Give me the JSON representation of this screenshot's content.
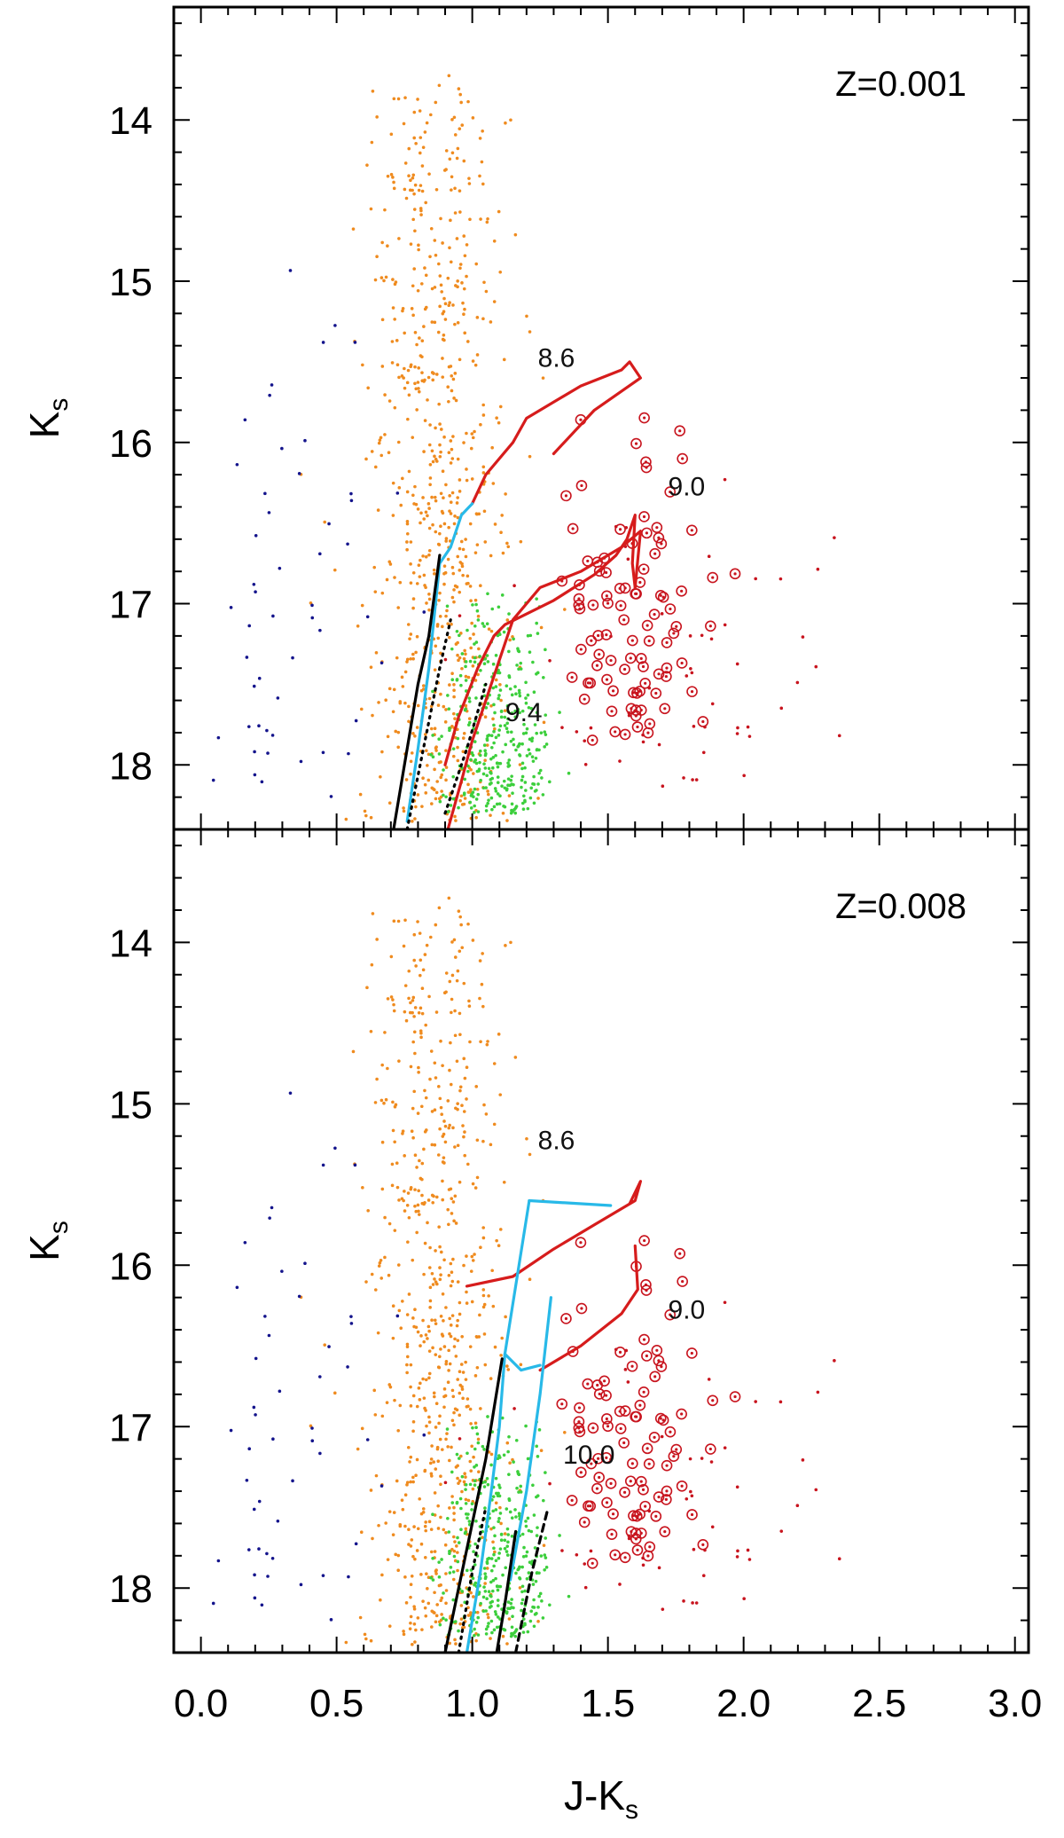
{
  "chart_data": [
    {
      "type": "scatter",
      "panel": "top",
      "annotation": "Z=0.001",
      "ylabel": "K",
      "ylabel_sub": "s",
      "xlim": [
        -0.1,
        3.05
      ],
      "ylim": [
        18.4,
        13.3
      ],
      "y_inverted": true,
      "yticks": [
        14,
        15,
        16,
        17,
        18
      ],
      "xticks": [
        0.0,
        0.5,
        1.0,
        1.5,
        2.0,
        2.5,
        3.0
      ],
      "show_xtick_labels": false,
      "age_labels": [
        {
          "text": "8.6",
          "x": 1.31,
          "y": 15.53
        },
        {
          "text": "9.0",
          "x": 1.79,
          "y": 16.33
        },
        {
          "text": "9.4",
          "x": 1.19,
          "y": 17.73
        }
      ],
      "lines": [
        {
          "color": "#d61c1c",
          "dash": "solid",
          "points": [
            [
              0.9,
              18.0
            ],
            [
              0.95,
              17.7
            ],
            [
              1.02,
              17.4
            ],
            [
              1.08,
              17.2
            ],
            [
              1.12,
              17.13
            ],
            [
              1.3,
              16.98
            ],
            [
              1.45,
              16.82
            ],
            [
              1.53,
              16.7
            ],
            [
              1.57,
              16.6
            ],
            [
              1.58,
              16.55
            ],
            [
              1.6,
              16.45
            ],
            [
              1.59,
              16.75
            ],
            [
              1.6,
              16.9
            ]
          ]
        },
        {
          "color": "#d61c1c",
          "dash": "solid",
          "points": [
            [
              0.91,
              18.4
            ],
            [
              0.96,
              18.1
            ],
            [
              1.0,
              17.85
            ],
            [
              1.05,
              17.6
            ],
            [
              1.1,
              17.35
            ],
            [
              1.15,
              17.1
            ],
            [
              1.25,
              16.9
            ],
            [
              1.4,
              16.8
            ],
            [
              1.55,
              16.65
            ],
            [
              1.62,
              16.55
            ],
            [
              1.6,
              16.9
            ]
          ]
        },
        {
          "color": "#d61c1c",
          "dash": "solid",
          "points": [
            [
              1.0,
              16.38
            ],
            [
              1.05,
              16.2
            ],
            [
              1.15,
              16.0
            ],
            [
              1.2,
              15.85
            ],
            [
              1.3,
              15.75
            ],
            [
              1.4,
              15.65
            ],
            [
              1.55,
              15.55
            ],
            [
              1.58,
              15.5
            ],
            [
              1.62,
              15.6
            ],
            [
              1.45,
              15.8
            ],
            [
              1.3,
              16.07
            ]
          ]
        },
        {
          "color": "#28b9e8",
          "dash": "solid",
          "points": [
            [
              0.76,
              18.35
            ],
            [
              0.8,
              17.9
            ],
            [
              0.84,
              17.4
            ],
            [
              0.88,
              16.75
            ],
            [
              0.92,
              16.65
            ],
            [
              0.96,
              16.45
            ],
            [
              1.0,
              16.38
            ]
          ]
        },
        {
          "color": "#000000",
          "dash": "solid",
          "points": [
            [
              0.71,
              18.4
            ],
            [
              0.76,
              17.9
            ],
            [
              0.8,
              17.5
            ],
            [
              0.84,
              17.2
            ],
            [
              0.88,
              16.7
            ]
          ]
        },
        {
          "color": "#000000",
          "dash": "dotted",
          "points": [
            [
              0.76,
              18.4
            ],
            [
              0.82,
              17.9
            ],
            [
              0.88,
              17.4
            ],
            [
              0.92,
              17.1
            ]
          ]
        },
        {
          "color": "#000000",
          "dash": "dotted",
          "points": [
            [
              0.9,
              18.3
            ],
            [
              0.98,
              17.9
            ],
            [
              1.05,
              17.5
            ]
          ]
        }
      ],
      "scatter_groups": [
        {
          "color": "#ef8b1f",
          "count": 720,
          "x_center": 0.88,
          "x_spread": 0.13,
          "y_range": [
            13.7,
            18.35
          ],
          "y_skew": 0.75
        },
        {
          "color": "#3ccf3c",
          "count": 360,
          "x_center": 1.09,
          "x_spread": 0.1,
          "y_range": [
            16.9,
            18.3
          ],
          "y_skew": 0.6
        },
        {
          "color": "#14148c",
          "count": 52,
          "x_center": 0.35,
          "x_spread": 0.18,
          "y_range": [
            14.2,
            18.2
          ],
          "y_skew": 0.5
        },
        {
          "color": "#c8141e",
          "count": 55,
          "x_center": 1.7,
          "x_spread": 0.3,
          "y_range": [
            16.2,
            18.2
          ],
          "y_skew": 0.5
        },
        {
          "color": "#c8141e",
          "count": 95,
          "x_center": 1.57,
          "x_spread": 0.15,
          "y_range": [
            15.5,
            17.85
          ],
          "y_skew": 0.5,
          "ring": true
        }
      ]
    },
    {
      "type": "scatter",
      "panel": "bottom",
      "annotation": "Z=0.008",
      "ylabel": "K",
      "ylabel_sub": "s",
      "xlabel": "J-K",
      "xlabel_sub": "s",
      "xlim": [
        -0.1,
        3.05
      ],
      "ylim": [
        18.4,
        13.3
      ],
      "y_inverted": true,
      "yticks": [
        14,
        15,
        16,
        17,
        18
      ],
      "xticks": [
        0.0,
        0.5,
        1.0,
        1.5,
        2.0,
        2.5,
        3.0
      ],
      "show_xtick_labels": true,
      "age_labels": [
        {
          "text": "8.6",
          "x": 1.31,
          "y": 15.28
        },
        {
          "text": "9.0",
          "x": 1.79,
          "y": 16.33
        },
        {
          "text": "10.0",
          "x": 1.43,
          "y": 17.23
        }
      ],
      "lines": [
        {
          "color": "#d61c1c",
          "dash": "solid",
          "points": [
            [
              0.98,
              16.13
            ],
            [
              1.15,
              16.07
            ],
            [
              1.3,
              15.9
            ],
            [
              1.45,
              15.75
            ],
            [
              1.6,
              15.6
            ],
            [
              1.62,
              15.48
            ],
            [
              1.58,
              15.62
            ]
          ]
        },
        {
          "color": "#d61c1c",
          "dash": "solid",
          "points": [
            [
              1.25,
              16.65
            ],
            [
              1.4,
              16.5
            ],
            [
              1.55,
              16.3
            ],
            [
              1.61,
              16.15
            ],
            [
              1.6,
              15.88
            ]
          ]
        },
        {
          "color": "#28b9e8",
          "dash": "solid",
          "points": [
            [
              1.21,
              15.6
            ],
            [
              1.51,
              15.63
            ]
          ]
        },
        {
          "color": "#28b9e8",
          "dash": "solid",
          "points": [
            [
              1.12,
              16.55
            ],
            [
              1.21,
              15.6
            ]
          ]
        },
        {
          "color": "#28b9e8",
          "dash": "solid",
          "points": [
            [
              0.98,
              18.4
            ],
            [
              1.03,
              17.9
            ],
            [
              1.07,
              17.4
            ],
            [
              1.1,
              17.0
            ],
            [
              1.12,
              16.55
            ],
            [
              1.18,
              16.65
            ],
            [
              1.25,
              16.62
            ]
          ]
        },
        {
          "color": "#28b9e8",
          "dash": "solid",
          "points": [
            [
              1.14,
              17.95
            ],
            [
              1.2,
              17.4
            ],
            [
              1.25,
              16.8
            ],
            [
              1.29,
              16.2
            ]
          ]
        },
        {
          "color": "#000000",
          "dash": "solid",
          "points": [
            [
              0.9,
              18.4
            ],
            [
              0.95,
              18.0
            ],
            [
              1.0,
              17.6
            ],
            [
              1.05,
              17.2
            ],
            [
              1.11,
              16.58
            ]
          ]
        },
        {
          "color": "#000000",
          "dash": "solid",
          "points": [
            [
              1.09,
              18.4
            ],
            [
              1.12,
              18.1
            ],
            [
              1.16,
              17.65
            ]
          ]
        },
        {
          "color": "#000000",
          "dash": "dashed",
          "points": [
            [
              1.16,
              18.4
            ],
            [
              1.22,
              17.9
            ],
            [
              1.28,
              17.5
            ]
          ]
        },
        {
          "color": "#000000",
          "dash": "dotted",
          "points": [
            [
              0.95,
              18.4
            ],
            [
              1.0,
              17.9
            ],
            [
              1.05,
              17.5
            ]
          ]
        }
      ],
      "scatter_groups": [
        {
          "color": "#ef8b1f",
          "count": 720,
          "x_center": 0.88,
          "x_spread": 0.13,
          "y_range": [
            13.7,
            18.35
          ],
          "y_skew": 0.75
        },
        {
          "color": "#3ccf3c",
          "count": 360,
          "x_center": 1.09,
          "x_spread": 0.1,
          "y_range": [
            16.9,
            18.3
          ],
          "y_skew": 0.6
        },
        {
          "color": "#14148c",
          "count": 52,
          "x_center": 0.35,
          "x_spread": 0.18,
          "y_range": [
            14.2,
            18.2
          ],
          "y_skew": 0.5
        },
        {
          "color": "#c8141e",
          "count": 55,
          "x_center": 1.7,
          "x_spread": 0.3,
          "y_range": [
            16.2,
            18.2
          ],
          "y_skew": 0.5
        },
        {
          "color": "#c8141e",
          "count": 95,
          "x_center": 1.57,
          "x_spread": 0.15,
          "y_range": [
            15.5,
            17.85
          ],
          "y_skew": 0.5,
          "ring": true
        }
      ]
    }
  ]
}
